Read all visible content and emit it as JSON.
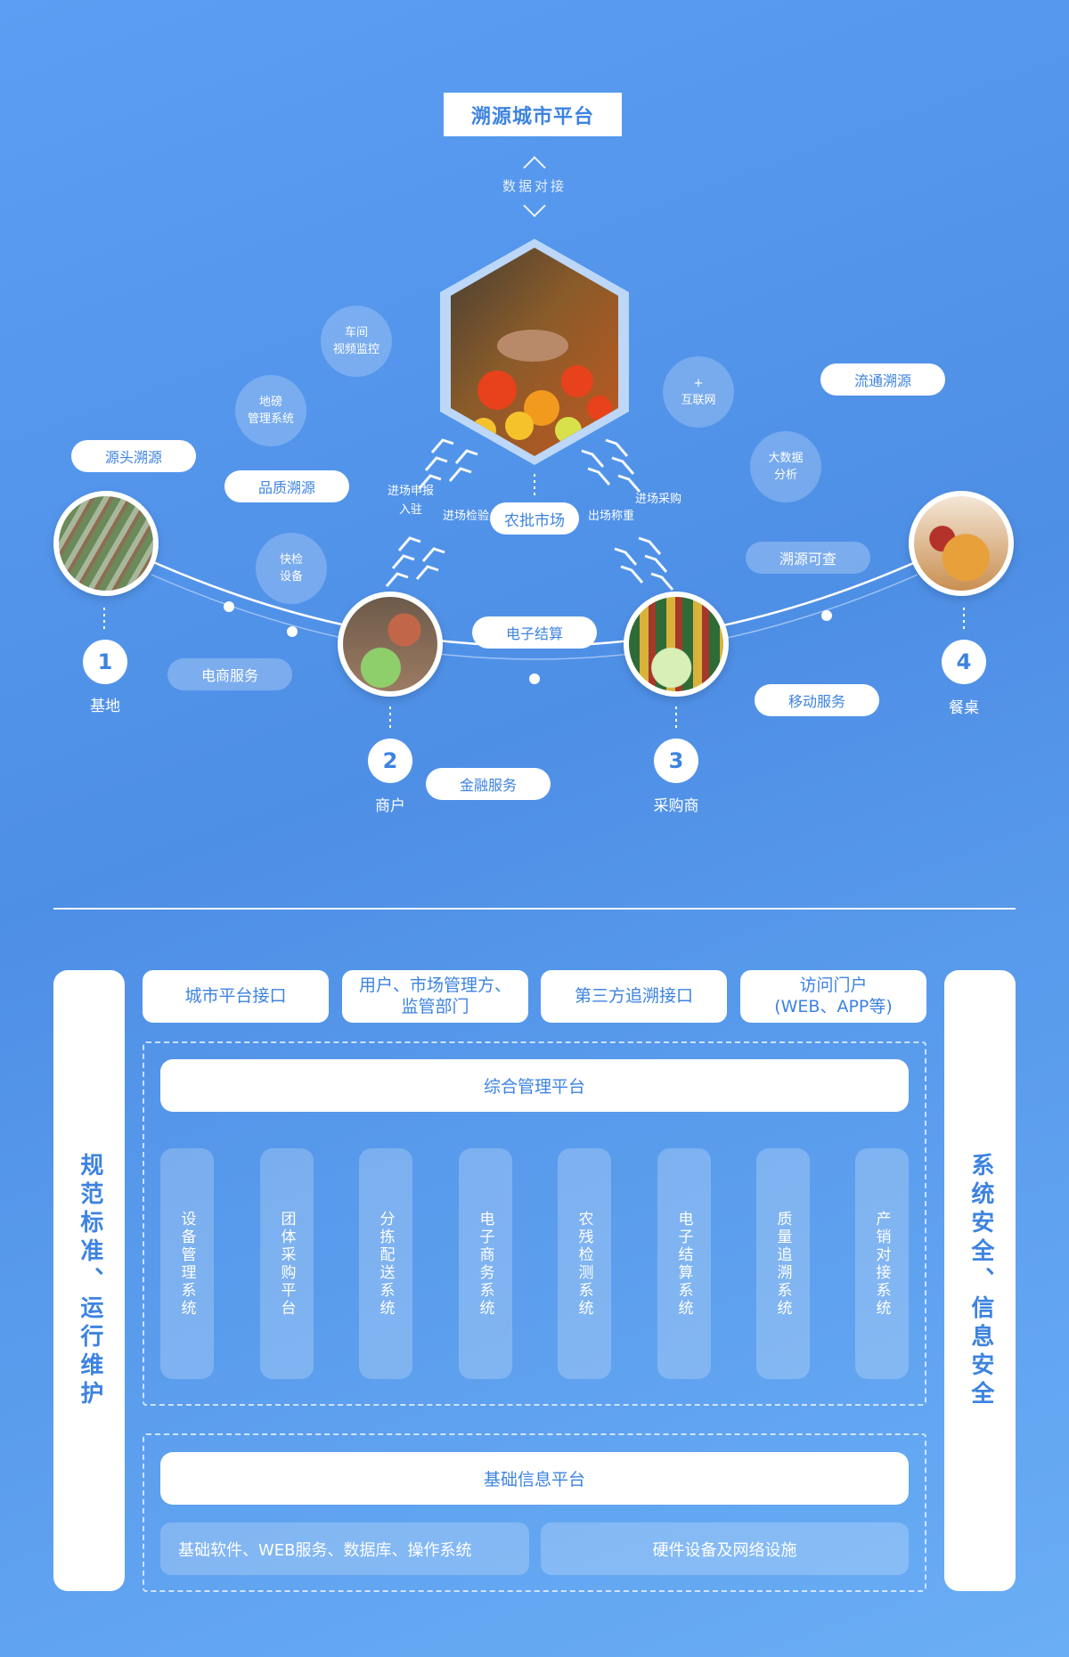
{
  "top": {
    "platform_title": "溯源城市平台",
    "data_link": "数据对接",
    "market_label": "农批市场",
    "entry_declare": "进场申报\n入驻",
    "entry_inspect": "进场检验",
    "exit_weigh": "出场称重",
    "entry_purchase": "进场采购",
    "bubbles": {
      "video": "车间\n视频监控",
      "weighbridge": "地磅\n管理系统",
      "quick_check": "快检\n设备",
      "internet": "+\n互联网",
      "bigdata": "大数据\n分析"
    },
    "pills": {
      "source_trace": "源头溯源",
      "quality_trace": "品质溯源",
      "ecommerce": "电商服务",
      "e_settlement": "电子结算",
      "finance": "金融服务",
      "circulation_trace": "流通溯源",
      "trace_query": "溯源可查",
      "mobile": "移动服务"
    },
    "nodes": [
      {
        "num": "1",
        "label": "基地"
      },
      {
        "num": "2",
        "label": "商户"
      },
      {
        "num": "3",
        "label": "采购商"
      },
      {
        "num": "4",
        "label": "餐桌"
      }
    ]
  },
  "bottom": {
    "left_col": "规范标准、运行维护",
    "right_col": "系统安全、信息安全",
    "top_boxes": [
      "城市平台接口",
      "用户、市场管理方、\n监管部门",
      "第三方追溯接口",
      "访问门户\n(WEB、APP等)"
    ],
    "mgmt_platform": "综合管理平台",
    "systems": [
      "设备管理系统",
      "团体采购平台",
      "分拣配送系统",
      "电子商务系统",
      "农残检测系统",
      "电子结算系统",
      "质量追溯系统",
      "产销对接系统"
    ],
    "base_platform": "基础信息平台",
    "base_software": "基础软件、WEB服务、数据库、操作系统",
    "hardware": "硬件设备及网络设施"
  },
  "colors": {
    "accent": "#3d83e0",
    "bg_top": "#5b9ef3",
    "bg_bottom": "#6aaef5"
  }
}
